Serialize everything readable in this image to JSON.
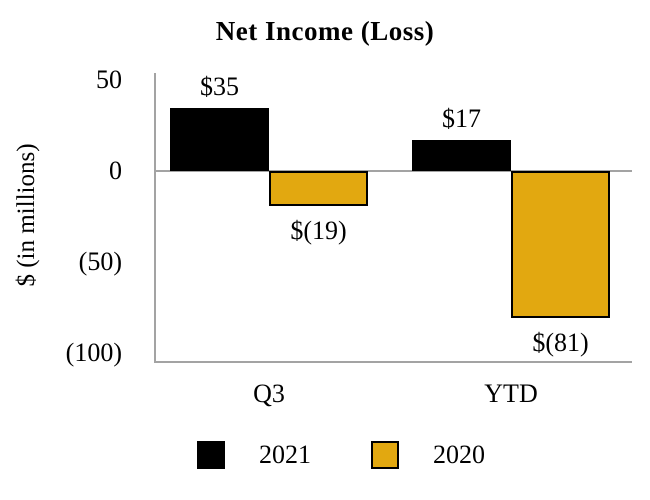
{
  "chart_data": {
    "type": "bar",
    "title": "Net Income (Loss)",
    "ylabel": "$ (in millions)",
    "categories": [
      "Q3",
      "YTD"
    ],
    "series": [
      {
        "name": "2021",
        "color": "#000000",
        "values": [
          35,
          17
        ],
        "value_labels": [
          "$35",
          "$17"
        ]
      },
      {
        "name": "2020",
        "color": "#e2a810",
        "values": [
          -19,
          -81
        ],
        "value_labels": [
          "$(19)",
          "$(81)"
        ]
      }
    ],
    "y_axis": {
      "ticks": [
        {
          "value": 50,
          "label": "50"
        },
        {
          "value": 0,
          "label": "0"
        },
        {
          "value": -50,
          "label": "(50)"
        },
        {
          "value": -100,
          "label": "(100)"
        }
      ],
      "range": [
        -105,
        54
      ]
    },
    "grid": "zero baseline and bottom axis line only",
    "legend_position": "bottom",
    "colors": {
      "series_2021": "#000000",
      "series_2020": "#e2a810",
      "axis_gray": "#a3a3a3",
      "background": "#ffffff"
    }
  }
}
